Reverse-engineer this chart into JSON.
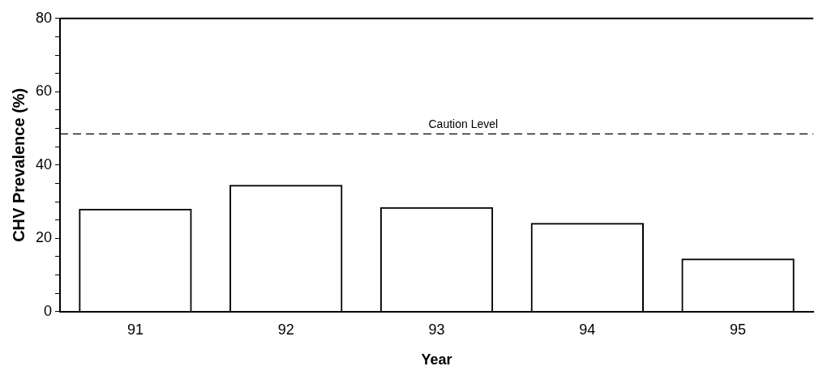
{
  "chart_data": {
    "type": "bar",
    "xlabel": "Year",
    "ylabel": "CHV Prevalence (%)",
    "categories": [
      "91",
      "92",
      "93",
      "94",
      "95"
    ],
    "values": [
      28.1,
      34.6,
      28.5,
      24.2,
      14.5
    ],
    "color": "#000000",
    "ylim": [
      0,
      80
    ],
    "yticks": [
      0,
      {
        "value": 5,
        "label": null
      },
      {
        "value": 10,
        "label": null
      },
      {
        "value": 15,
        "label": null
      },
      20,
      {
        "value": 25,
        "label": null
      },
      {
        "value": 30,
        "label": null
      },
      {
        "value": 35,
        "label": null
      },
      40,
      {
        "value": 45,
        "label": null
      },
      {
        "value": 50,
        "label": null
      },
      {
        "value": 55,
        "label": null
      },
      60,
      {
        "value": 65,
        "label": null
      },
      {
        "value": 70,
        "label": null
      },
      {
        "value": 75,
        "label": null
      },
      80
    ],
    "ref_lines": [
      {
        "axis": "y",
        "value": 48.5,
        "label": "Caution Level",
        "color": "#000000",
        "line_style": "dashed"
      }
    ],
    "grid": false,
    "legend": false
  }
}
